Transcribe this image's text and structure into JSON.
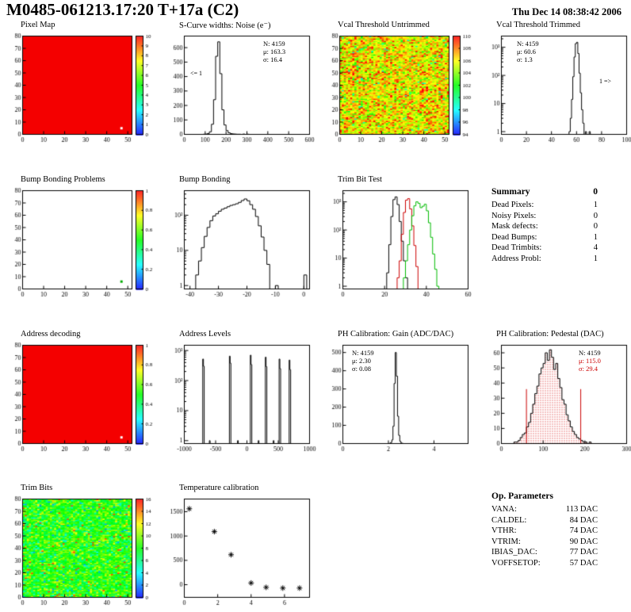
{
  "page": {
    "title": "M0485-061213.17:20 T+17a (C2)",
    "date": "Thu Dec 14 08:38:42 2006"
  },
  "summary": {
    "header": "Summary",
    "grade": "0",
    "rows": [
      {
        "label": "Dead Pixels:",
        "value": "1"
      },
      {
        "label": "Noisy Pixels:",
        "value": "0"
      },
      {
        "label": "Mask defects:",
        "value": "0"
      },
      {
        "label": "Dead Bumps:",
        "value": "1"
      },
      {
        "label": "Dead Trimbits:",
        "value": "4"
      },
      {
        "label": "Address Probl:",
        "value": "1"
      }
    ]
  },
  "op_params": {
    "header": "Op. Parameters",
    "rows": [
      {
        "label": "VANA:",
        "value": "113 DAC"
      },
      {
        "label": "CALDEL:",
        "value": "84 DAC"
      },
      {
        "label": "VTHR:",
        "value": "74 DAC"
      },
      {
        "label": "VTRIM:",
        "value": "90 DAC"
      },
      {
        "label": "IBIAS_DAC:",
        "value": "77 DAC"
      },
      {
        "label": "VOFFSETOP:",
        "value": "57 DAC"
      }
    ]
  },
  "chart_data": [
    {
      "id": "pixel_map",
      "type": "heatmap",
      "title": "Pixel Map",
      "x_range": [
        0,
        52
      ],
      "y_range": [
        0,
        80
      ],
      "x_ticks": [
        0,
        10,
        20,
        30,
        40,
        50
      ],
      "y_ticks": [
        0,
        10,
        20,
        30,
        40,
        50,
        60,
        70,
        80
      ],
      "z_range": [
        0,
        10
      ],
      "z_ticks": [
        0,
        1,
        2,
        3,
        4,
        5,
        6,
        7,
        8,
        9,
        10
      ],
      "fill": "uniform",
      "uniform_color": "#f40000",
      "defects": [
        {
          "x": 47,
          "y": 5,
          "color": "#ffffff"
        }
      ]
    },
    {
      "id": "scurve",
      "type": "hist",
      "title": "S-Curve widths: Noise (e⁻)",
      "x_range": [
        0,
        600
      ],
      "x_ticks": [
        0,
        100,
        200,
        300,
        400,
        500,
        600
      ],
      "y_range": [
        0,
        680
      ],
      "y_ticks": [
        0,
        100,
        200,
        300,
        400,
        500,
        600
      ],
      "bin_w": 10,
      "color": "#000000",
      "bins": [
        [
          90,
          1
        ],
        [
          100,
          2
        ],
        [
          110,
          6
        ],
        [
          120,
          18
        ],
        [
          130,
          70
        ],
        [
          140,
          240
        ],
        [
          150,
          540
        ],
        [
          160,
          640
        ],
        [
          170,
          420
        ],
        [
          180,
          170
        ],
        [
          190,
          65
        ],
        [
          200,
          26
        ],
        [
          210,
          11
        ],
        [
          220,
          5
        ],
        [
          230,
          3
        ],
        [
          240,
          2
        ],
        [
          250,
          1
        ],
        [
          260,
          1
        ],
        [
          280,
          2
        ],
        [
          300,
          1
        ]
      ],
      "stats_lines": [
        "N: 4159",
        "μ: 163.3",
        "σ: 16.4"
      ],
      "note": "<= 1"
    },
    {
      "id": "vcal_untrimmed",
      "type": "heatmap",
      "title": "Vcal Threshold Untrimmed",
      "x_range": [
        0,
        52
      ],
      "y_range": [
        0,
        80
      ],
      "x_ticks": [
        0,
        10,
        20,
        30,
        40,
        50
      ],
      "y_ticks": [
        0,
        10,
        20,
        30,
        40,
        50,
        60,
        70,
        80
      ],
      "z_range": [
        94,
        110
      ],
      "z_ticks": [
        94,
        96,
        98,
        100,
        102,
        104,
        106,
        108,
        110
      ],
      "fill": "noise",
      "noise": {
        "mean": 106,
        "sd": 1.8,
        "low_frac": 0.015,
        "low_val": 99,
        "high_frac": 0.025,
        "high_val": 110,
        "seed": 12
      }
    },
    {
      "id": "vcal_trimmed",
      "type": "hist",
      "title": "Vcal Threshold Trimmed",
      "logy": true,
      "x_range": [
        0,
        100
      ],
      "x_ticks": [
        0,
        20,
        40,
        60,
        80,
        100
      ],
      "y_range": [
        0.8,
        2500
      ],
      "bin_w": 1,
      "color": "#000000",
      "bins": [
        [
          54,
          1
        ],
        [
          55,
          3
        ],
        [
          56,
          14
        ],
        [
          57,
          90
        ],
        [
          58,
          450
        ],
        [
          59,
          1350
        ],
        [
          60,
          1500
        ],
        [
          61,
          600
        ],
        [
          62,
          120
        ],
        [
          63,
          24
        ],
        [
          64,
          6
        ],
        [
          65,
          2
        ],
        [
          67,
          1
        ],
        [
          70,
          1
        ]
      ],
      "stats_lines": [
        "N: 4159",
        "μ: 60.6",
        "σ: 1.3"
      ],
      "note": "1 =>"
    },
    {
      "id": "bump_problems",
      "type": "heatmap",
      "title": "Bump Bonding Problems",
      "x_range": [
        0,
        52
      ],
      "y_range": [
        0,
        80
      ],
      "x_ticks": [
        0,
        10,
        20,
        30,
        40,
        50
      ],
      "y_ticks": [
        0,
        10,
        20,
        30,
        40,
        50,
        60,
        70,
        80
      ],
      "z_range": [
        0,
        1
      ],
      "z_ticks": [
        0,
        0.2,
        0.4,
        0.6,
        0.8,
        1
      ],
      "fill": "none",
      "defects": [
        {
          "x": 47,
          "y": 6,
          "color": "#00aa00"
        }
      ]
    },
    {
      "id": "bump_bonding",
      "type": "hist",
      "title": "Bump Bonding",
      "logy": true,
      "x_range": [
        -42,
        2
      ],
      "x_ticks": [
        -40,
        -30,
        -20,
        -10,
        0
      ],
      "y_range": [
        0.8,
        500
      ],
      "bin_w": 1,
      "color": "#000000",
      "bins": [
        [
          -38,
          2
        ],
        [
          -37,
          5
        ],
        [
          -36,
          12
        ],
        [
          -35,
          25
        ],
        [
          -34,
          45
        ],
        [
          -33,
          70
        ],
        [
          -32,
          95
        ],
        [
          -31,
          110
        ],
        [
          -30,
          130
        ],
        [
          -29,
          148
        ],
        [
          -28,
          160
        ],
        [
          -27,
          175
        ],
        [
          -26,
          190
        ],
        [
          -25,
          200
        ],
        [
          -24,
          212
        ],
        [
          -23,
          232
        ],
        [
          -22,
          262
        ],
        [
          -21,
          290
        ],
        [
          -20,
          258
        ],
        [
          -19,
          200
        ],
        [
          -18,
          148
        ],
        [
          -17,
          92
        ],
        [
          -16,
          50
        ],
        [
          -15,
          24
        ],
        [
          -14,
          10
        ],
        [
          -13,
          4
        ],
        [
          -10,
          1
        ],
        [
          0,
          2
        ]
      ]
    },
    {
      "id": "trim_bit_test",
      "type": "multihist",
      "title": "Trim Bit Test",
      "logy": true,
      "x_range": [
        0,
        60
      ],
      "x_ticks": [
        0,
        20,
        40,
        60
      ],
      "y_range": [
        0.8,
        2500
      ],
      "bin_w": 1,
      "series": [
        {
          "color": "#000000",
          "bins": [
            [
              21,
              3
            ],
            [
              22,
              30
            ],
            [
              23,
              300
            ],
            [
              24,
              1200
            ],
            [
              25,
              1500
            ],
            [
              26,
              800
            ],
            [
              27,
              200
            ],
            [
              28,
              40
            ],
            [
              29,
              8
            ],
            [
              30,
              2
            ]
          ]
        },
        {
          "color": "#cc0000",
          "bins": [
            [
              26,
              2
            ],
            [
              27,
              8
            ],
            [
              28,
              70
            ],
            [
              29,
              420
            ],
            [
              30,
              1150
            ],
            [
              31,
              1300
            ],
            [
              32,
              560
            ],
            [
              33,
              140
            ],
            [
              34,
              28
            ],
            [
              35,
              5
            ]
          ]
        },
        {
          "color": "#00bb00",
          "bins": [
            [
              29,
              2
            ],
            [
              30,
              8
            ],
            [
              31,
              30
            ],
            [
              32,
              100
            ],
            [
              33,
              320
            ],
            [
              34,
              720
            ],
            [
              35,
              1000
            ],
            [
              36,
              880
            ],
            [
              37,
              620
            ],
            [
              38,
              700
            ],
            [
              39,
              820
            ],
            [
              40,
              480
            ],
            [
              41,
              180
            ],
            [
              42,
              55
            ],
            [
              43,
              14
            ],
            [
              44,
              4
            ],
            [
              45,
              1
            ]
          ]
        }
      ]
    },
    {
      "id": "address_decoding",
      "type": "heatmap",
      "title": "Address decoding",
      "x_range": [
        0,
        52
      ],
      "y_range": [
        0,
        80
      ],
      "x_ticks": [
        0,
        10,
        20,
        30,
        40,
        50
      ],
      "y_ticks": [
        0,
        10,
        20,
        30,
        40,
        50,
        60,
        70,
        80
      ],
      "z_range": [
        0,
        1
      ],
      "z_ticks": [
        0,
        0.2,
        0.4,
        0.6,
        0.8,
        1
      ],
      "fill": "uniform",
      "uniform_color": "#f40000",
      "defects": [
        {
          "x": 47,
          "y": 5,
          "color": "#ffffff"
        }
      ]
    },
    {
      "id": "address_levels",
      "type": "hist",
      "title": "Address Levels",
      "logy": true,
      "x_range": [
        -1000,
        1000
      ],
      "x_ticks": [
        -1000,
        -500,
        0,
        500,
        1000
      ],
      "y_range": [
        0.8,
        1500
      ],
      "bin_w": 12,
      "color": "#000000",
      "bins": [
        [
          -706,
          520
        ],
        [
          -694,
          300
        ],
        [
          -600,
          1
        ],
        [
          -280,
          650
        ],
        [
          -268,
          380
        ],
        [
          -150,
          1
        ],
        [
          54,
          700
        ],
        [
          66,
          340
        ],
        [
          180,
          1
        ],
        [
          294,
          600
        ],
        [
          306,
          290
        ],
        [
          420,
          1
        ],
        [
          514,
          520
        ],
        [
          526,
          250
        ],
        [
          674,
          480
        ],
        [
          686,
          230
        ]
      ]
    },
    {
      "id": "ph_gain",
      "type": "hist",
      "title": "PH Calibration: Gain (ADC/DAC)",
      "x_range": [
        0,
        5.5
      ],
      "x_ticks": [
        0,
        2,
        4
      ],
      "y_range": [
        0,
        540
      ],
      "y_ticks": [
        0,
        100,
        200,
        300,
        400,
        500
      ],
      "bin_w": 0.05,
      "color": "#000000",
      "bins": [
        [
          2.05,
          2
        ],
        [
          2.1,
          6
        ],
        [
          2.15,
          20
        ],
        [
          2.2,
          95
        ],
        [
          2.25,
          330
        ],
        [
          2.3,
          500
        ],
        [
          2.35,
          370
        ],
        [
          2.4,
          150
        ],
        [
          2.45,
          45
        ],
        [
          2.5,
          12
        ],
        [
          2.55,
          3
        ],
        [
          2.6,
          1
        ]
      ],
      "stats_lines": [
        "N: 4159",
        "μ: 2.30",
        "σ: 0.08"
      ]
    },
    {
      "id": "ph_pedestal",
      "type": "hist",
      "title": "PH Calibration: Pedestal (DAC)",
      "x_range": [
        0,
        300
      ],
      "x_ticks": [
        0,
        100,
        200,
        300
      ],
      "y_range": [
        0,
        65
      ],
      "y_ticks": [
        0,
        10,
        20,
        30,
        40,
        50,
        60
      ],
      "bin_w": 5,
      "color": "#000000",
      "fill": "dots",
      "fill_color": "#cc0000",
      "vlines": [
        {
          "x": 60,
          "y": 36
        },
        {
          "x": 190,
          "y": 36
        }
      ],
      "bins": [
        [
          30,
          1
        ],
        [
          35,
          1
        ],
        [
          40,
          2
        ],
        [
          45,
          4
        ],
        [
          50,
          6
        ],
        [
          55,
          7
        ],
        [
          60,
          11
        ],
        [
          65,
          14
        ],
        [
          70,
          20
        ],
        [
          75,
          26
        ],
        [
          80,
          33
        ],
        [
          85,
          38
        ],
        [
          90,
          46
        ],
        [
          95,
          50
        ],
        [
          100,
          53
        ],
        [
          105,
          60
        ],
        [
          110,
          55
        ],
        [
          115,
          62
        ],
        [
          120,
          57
        ],
        [
          125,
          49
        ],
        [
          130,
          53
        ],
        [
          135,
          43
        ],
        [
          140,
          37
        ],
        [
          145,
          29
        ],
        [
          150,
          26
        ],
        [
          155,
          19
        ],
        [
          160,
          15
        ],
        [
          165,
          11
        ],
        [
          170,
          8
        ],
        [
          175,
          6
        ],
        [
          180,
          4
        ],
        [
          185,
          3
        ],
        [
          190,
          2
        ],
        [
          195,
          1
        ],
        [
          200,
          1
        ],
        [
          210,
          1
        ]
      ],
      "stats_lines": [
        "N: 4159",
        "μ: 115.0",
        "σ: 29.4"
      ]
    },
    {
      "id": "trim_bits",
      "type": "heatmap",
      "title": "Trim Bits",
      "x_range": [
        0,
        52
      ],
      "y_range": [
        0,
        80
      ],
      "x_ticks": [
        0,
        10,
        20,
        30,
        40,
        50
      ],
      "y_ticks": [
        0,
        10,
        20,
        30,
        40,
        50,
        60,
        70,
        80
      ],
      "z_range": [
        0,
        16
      ],
      "z_ticks": [
        0,
        2,
        4,
        6,
        8,
        10,
        12,
        14,
        16
      ],
      "fill": "noise",
      "noise": {
        "mean": 8.3,
        "sd": 1.7,
        "low_frac": 0.01,
        "low_val": 2.5,
        "high_frac": 0.015,
        "high_val": 15,
        "seed": 5
      }
    },
    {
      "id": "temp_cal",
      "type": "scatter",
      "title": "Temperature calibration",
      "marker": "asterisk",
      "x_range": [
        0,
        7.5
      ],
      "x_ticks": [
        0,
        2,
        4,
        6
      ],
      "y_range": [
        -260,
        1760
      ],
      "y_ticks": [
        0,
        500,
        1000,
        1500
      ],
      "points": [
        [
          0.3,
          1560
        ],
        [
          1.8,
          1090
        ],
        [
          2.8,
          615
        ],
        [
          4.0,
          35
        ],
        [
          4.9,
          -55
        ],
        [
          5.9,
          -70
        ],
        [
          6.9,
          -70
        ]
      ]
    }
  ]
}
